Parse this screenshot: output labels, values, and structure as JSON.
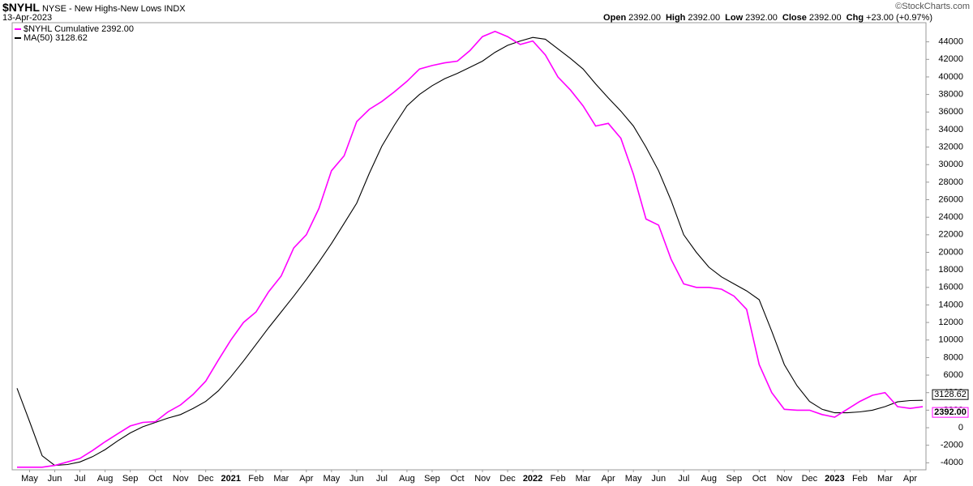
{
  "chart_data": {
    "type": "line",
    "symbol": "$NYHL",
    "name": "NYSE - New Highs-New Lows",
    "exchange": "INDX",
    "date": "13-Apr-2023",
    "credit": "©StockCharts.com",
    "quote": [
      {
        "label": "Open",
        "value": "2392.00"
      },
      {
        "label": "High",
        "value": "2392.00"
      },
      {
        "label": "Low",
        "value": "2392.00"
      },
      {
        "label": "Close",
        "value": "2392.00"
      },
      {
        "label": "Chg",
        "value": "+23.00 (+0.97%)"
      }
    ],
    "categories": [
      null,
      "May",
      null,
      "Jun",
      null,
      "Jul",
      null,
      "Aug",
      null,
      "Sep",
      null,
      "Oct",
      null,
      "Nov",
      null,
      "Dec",
      null,
      "2021",
      null,
      "Feb",
      null,
      "Mar",
      null,
      "Apr",
      null,
      "May",
      null,
      "Jun",
      null,
      "Jul",
      null,
      "Aug",
      null,
      "Sep",
      null,
      "Oct",
      null,
      "Nov",
      null,
      "Dec",
      null,
      "2022",
      null,
      "Feb",
      null,
      "Mar",
      null,
      "Apr",
      null,
      "May",
      null,
      "Jun",
      null,
      "Jul",
      null,
      "Aug",
      null,
      "Sep",
      null,
      "Oct",
      null,
      "Nov",
      null,
      "Dec",
      null,
      "2023",
      null,
      "Feb",
      null,
      "Mar",
      null,
      "Apr",
      null
    ],
    "series": [
      {
        "name": "$NYHL Cumulative 2392.00",
        "color": "#ff00ff",
        "last_label": "2392.00",
        "values": [
          -4500,
          -4500,
          -4500,
          -4300,
          -3900,
          -3500,
          -2600,
          -1600,
          -700,
          200,
          600,
          700,
          1800,
          2600,
          3800,
          5300,
          7700,
          10000,
          12000,
          13200,
          15500,
          17300,
          20500,
          22000,
          25000,
          29300,
          31000,
          34900,
          36300,
          37200,
          38300,
          39500,
          40900,
          41300,
          41600,
          41800,
          43000,
          44600,
          45200,
          44600,
          43700,
          44100,
          42500,
          40000,
          38500,
          36700,
          34400,
          34700,
          33000,
          28900,
          23800,
          23100,
          19200,
          16400,
          16000,
          16000,
          15800,
          15000,
          13500,
          7200,
          4000,
          2100,
          2000,
          2000,
          1500,
          1200,
          2100,
          3000,
          3700,
          4000,
          2400,
          2200,
          2392
        ]
      },
      {
        "name": "MA(50) 3128.62",
        "color": "#000000",
        "last_label": "3128.62",
        "values": [
          4500,
          700,
          -3200,
          -4300,
          -4200,
          -3900,
          -3300,
          -2500,
          -1500,
          -600,
          100,
          600,
          1100,
          1500,
          2200,
          3000,
          4200,
          5800,
          7600,
          9500,
          11400,
          13200,
          15000,
          16900,
          18900,
          21000,
          23300,
          25600,
          29000,
          32100,
          34500,
          36700,
          38000,
          39000,
          39800,
          40400,
          41100,
          41800,
          42800,
          43600,
          44100,
          44500,
          44300,
          43200,
          42100,
          40900,
          39200,
          37600,
          36100,
          34400,
          32000,
          29300,
          25900,
          22000,
          20000,
          18300,
          17200,
          16400,
          15600,
          14600,
          11000,
          7200,
          4800,
          3000,
          2100,
          1700,
          1700,
          1800,
          2000,
          2400,
          2950,
          3100,
          3128.62
        ]
      }
    ],
    "ylim": [
      -4800,
      46000
    ],
    "yticks": [
      -4000,
      -2000,
      0,
      2000,
      4000,
      6000,
      8000,
      10000,
      12000,
      14000,
      16000,
      18000,
      20000,
      22000,
      24000,
      26000,
      28000,
      30000,
      32000,
      34000,
      36000,
      38000,
      40000,
      42000,
      44000
    ],
    "grid": false,
    "legend": "top-left"
  }
}
